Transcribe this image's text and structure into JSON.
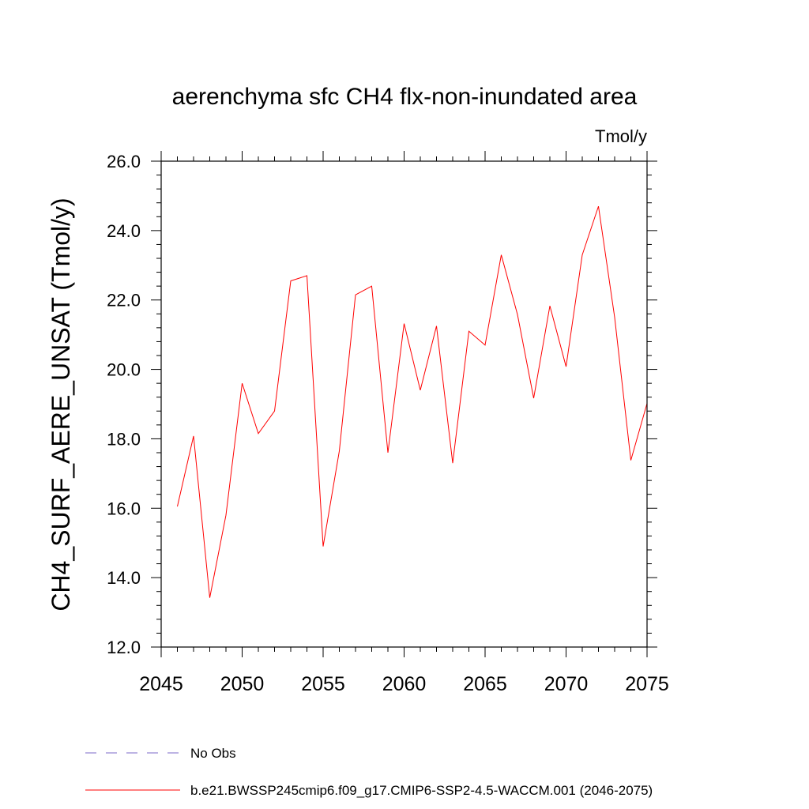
{
  "chart_data": {
    "type": "line",
    "title": "aerenchyma sfc CH4 flx-non-inundated area",
    "units": "Tmol/y",
    "ylabel": "CH4_SURF_AERE_UNSAT  (Tmol/y)",
    "xlabel": "",
    "xlim": [
      2045,
      2075
    ],
    "ylim": [
      12.0,
      26.0
    ],
    "xticks": [
      2045,
      2050,
      2055,
      2060,
      2065,
      2070,
      2075
    ],
    "xtick_labels": [
      "2045",
      "2050",
      "2055",
      "2060",
      "2065",
      "2070",
      "2075"
    ],
    "yticks": [
      12.0,
      14.0,
      16.0,
      18.0,
      20.0,
      22.0,
      24.0,
      26.0
    ],
    "ytick_labels": [
      "12.0",
      "14.0",
      "16.0",
      "18.0",
      "20.0",
      "22.0",
      "24.0",
      "26.0"
    ],
    "grid": false,
    "legend_position": "bottom",
    "series": [
      {
        "name": "b.e21.BWSSP245cmip6.f09_g17.CMIP6-SSP2-4.5-WACCM.001 (2046-2075)",
        "color": "#ff0000",
        "style": "solid",
        "x": [
          2046,
          2047,
          2048,
          2049,
          2050,
          2051,
          2052,
          2053,
          2054,
          2055,
          2056,
          2057,
          2058,
          2059,
          2060,
          2061,
          2062,
          2063,
          2064,
          2065,
          2066,
          2067,
          2068,
          2069,
          2070,
          2071,
          2072,
          2073,
          2074,
          2075
        ],
        "y": [
          16.05,
          18.08,
          13.42,
          15.8,
          19.6,
          18.15,
          18.8,
          22.55,
          22.7,
          14.9,
          17.65,
          22.15,
          22.4,
          17.6,
          21.32,
          19.4,
          21.25,
          17.3,
          21.1,
          20.7,
          23.3,
          21.58,
          19.17,
          21.83,
          20.08,
          23.3,
          24.7,
          21.5,
          17.38,
          19.02
        ]
      },
      {
        "name": "No Obs",
        "color": "#7b68c8",
        "style": "dashed",
        "x": [],
        "y": []
      }
    ]
  }
}
